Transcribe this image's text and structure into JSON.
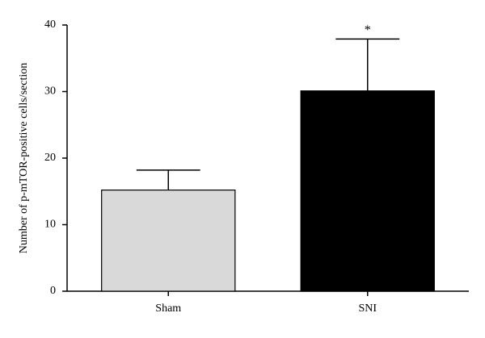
{
  "chart_data": {
    "type": "bar",
    "y_label": "Number of p-mTOR-positive cells/section",
    "categories": [
      "Sham",
      "SNI"
    ],
    "values": [
      15.2,
      30.1
    ],
    "errors": [
      3.0,
      7.8
    ],
    "colors": [
      "#d9d9d9",
      "#000000"
    ],
    "ylim": [
      0,
      40
    ],
    "yticks": [
      0,
      10,
      20,
      30,
      40
    ],
    "annotations": [
      {
        "text": "*",
        "category": "SNI"
      }
    ]
  }
}
